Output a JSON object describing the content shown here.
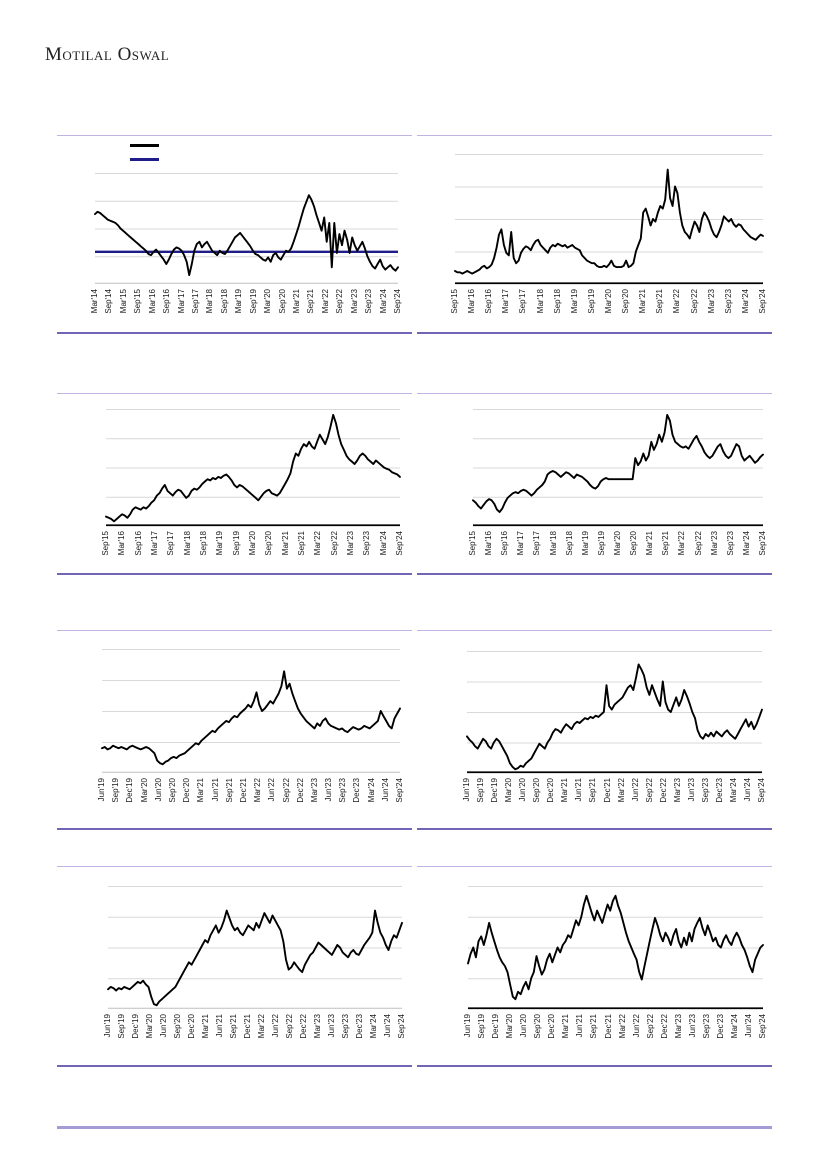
{
  "header": {
    "brand": "Motilal Oswal"
  },
  "colors": {
    "series_line": "#000000",
    "average_line": "#1f1d8a",
    "gridline": "#d9d9d9",
    "axis_baseline_black": "#000000",
    "axis_baseline_gray": "#bfbfbf",
    "panel_top_rule": "#c1b3e2",
    "panel_bottom_rule": "#7166b6",
    "footer_rule": "#a79bd6",
    "label_text": "#1a1a1a"
  },
  "legend": {
    "swatches": [
      {
        "name": "series-line-swatch",
        "color": "#000000"
      },
      {
        "name": "average-line-swatch",
        "color": "#1f1d8a"
      }
    ]
  },
  "chart_data": [
    {
      "id": "chart-1",
      "type": "line",
      "position": "row1-left",
      "title": "",
      "xlabel": "",
      "ylabel": "",
      "x_labels": [
        "Mar'14",
        "Sep'14",
        "Mar'15",
        "Sep'15",
        "Mar'16",
        "Sep'16",
        "Mar'17",
        "Sep'17",
        "Mar'18",
        "Sep'18",
        "Mar'19",
        "Sep'19",
        "Mar'20",
        "Sep'20",
        "Mar'21",
        "Sep'21",
        "Mar'22",
        "Sep'22",
        "Mar'23",
        "Sep'23",
        "Mar'24",
        "Sep'24"
      ],
      "y_axis": {
        "tick_labels_visible": false,
        "units": "relative percent of plot height"
      },
      "ylim": [
        0,
        100
      ],
      "grid": true,
      "baseline": "gray",
      "has_average_line": true,
      "average_value": 29,
      "values": [
        63,
        65,
        64,
        62,
        60,
        58,
        57,
        56,
        55,
        53,
        50,
        48,
        46,
        44,
        42,
        40,
        38,
        36,
        34,
        32,
        30,
        27,
        26,
        29,
        31,
        28,
        25,
        22,
        18,
        22,
        27,
        31,
        33,
        32,
        30,
        26,
        20,
        8,
        18,
        30,
        36,
        38,
        33,
        36,
        38,
        34,
        30,
        28,
        26,
        30,
        28,
        27,
        30,
        34,
        38,
        42,
        44,
        46,
        43,
        40,
        37,
        34,
        30,
        27,
        26,
        24,
        22,
        21,
        24,
        20,
        26,
        28,
        24,
        22,
        26,
        30,
        29,
        32,
        38,
        45,
        52,
        60,
        68,
        74,
        80,
        76,
        70,
        62,
        55,
        48,
        60,
        38,
        55,
        15,
        55,
        28,
        45,
        35,
        48,
        40,
        28,
        42,
        35,
        30,
        34,
        38,
        32,
        25,
        20,
        16,
        14,
        18,
        22,
        16,
        13,
        15,
        17,
        14,
        12,
        15
      ]
    },
    {
      "id": "chart-2",
      "type": "line",
      "position": "row1-right",
      "title": "",
      "xlabel": "",
      "ylabel": "",
      "x_labels": [
        "Sep'15",
        "Mar'16",
        "Sep'16",
        "Mar'17",
        "Sep'17",
        "Mar'18",
        "Sep'18",
        "Mar'19",
        "Sep'19",
        "Mar'20",
        "Sep'20",
        "Mar'21",
        "Sep'21",
        "Mar'22",
        "Sep'22",
        "Mar'23",
        "Sep'23",
        "Mar'24",
        "Sep'24"
      ],
      "y_axis": {
        "tick_labels_visible": false,
        "units": "relative percent of plot height"
      },
      "ylim": [
        0,
        100
      ],
      "grid": true,
      "baseline": "black",
      "has_average_line": false,
      "average_value": null,
      "values": [
        10,
        9,
        9,
        8,
        9,
        10,
        9,
        8,
        9,
        10,
        11,
        13,
        14,
        12,
        13,
        15,
        20,
        28,
        38,
        42,
        30,
        24,
        22,
        40,
        20,
        16,
        18,
        24,
        27,
        29,
        28,
        26,
        30,
        33,
        34,
        30,
        28,
        26,
        24,
        28,
        30,
        29,
        31,
        30,
        29,
        30,
        28,
        29,
        30,
        28,
        27,
        26,
        22,
        20,
        18,
        17,
        16,
        16,
        14,
        13,
        13,
        14,
        13,
        15,
        18,
        14,
        13,
        13,
        13,
        14,
        18,
        13,
        14,
        16,
        25,
        30,
        35,
        55,
        58,
        52,
        45,
        50,
        48,
        55,
        60,
        58,
        65,
        88,
        66,
        60,
        75,
        70,
        55,
        45,
        40,
        38,
        35,
        42,
        48,
        45,
        40,
        50,
        55,
        52,
        48,
        42,
        38,
        36,
        40,
        45,
        52,
        50,
        48,
        50,
        46,
        44,
        46,
        45,
        42,
        40,
        38,
        36,
        35,
        34,
        36,
        38,
        37
      ]
    },
    {
      "id": "chart-3",
      "type": "line",
      "position": "row2-left",
      "title": "",
      "xlabel": "",
      "ylabel": "",
      "x_labels": [
        "Sep'15",
        "Mar'16",
        "Sep'16",
        "Mar'17",
        "Sep'17",
        "Mar'18",
        "Sep'18",
        "Mar'19",
        "Sep'19",
        "Mar'20",
        "Sep'20",
        "Mar'21",
        "Sep'21",
        "Mar'22",
        "Sep'22",
        "Mar'23",
        "Sep'23",
        "Mar'24",
        "Sep'24"
      ],
      "y_axis": {
        "tick_labels_visible": false,
        "units": "relative percent of plot height"
      },
      "ylim": [
        0,
        100
      ],
      "grid": true,
      "baseline": "black",
      "has_average_line": false,
      "average_value": null,
      "values": [
        8,
        7,
        6,
        4,
        6,
        8,
        10,
        9,
        7,
        10,
        14,
        16,
        15,
        14,
        16,
        15,
        17,
        20,
        22,
        26,
        28,
        32,
        35,
        30,
        28,
        26,
        29,
        31,
        30,
        27,
        24,
        26,
        30,
        32,
        31,
        33,
        36,
        38,
        40,
        39,
        41,
        40,
        42,
        41,
        43,
        44,
        42,
        39,
        35,
        33,
        35,
        34,
        32,
        30,
        28,
        26,
        24,
        22,
        25,
        28,
        30,
        31,
        28,
        27,
        26,
        28,
        32,
        36,
        40,
        45,
        55,
        62,
        60,
        66,
        70,
        68,
        72,
        68,
        66,
        72,
        78,
        74,
        70,
        76,
        85,
        95,
        88,
        78,
        70,
        65,
        60,
        57,
        55,
        53,
        56,
        60,
        62,
        60,
        57,
        55,
        53,
        56,
        54,
        52,
        50,
        49,
        48,
        46,
        45,
        44,
        42
      ]
    },
    {
      "id": "chart-4",
      "type": "line",
      "position": "row2-right",
      "title": "",
      "xlabel": "",
      "ylabel": "",
      "x_labels": [
        "Sep'15",
        "Mar'16",
        "Sep'16",
        "Mar'17",
        "Sep'17",
        "Mar'18",
        "Sep'18",
        "Mar'19",
        "Sep'19",
        "Mar'20",
        "Sep'20",
        "Mar'21",
        "Sep'21",
        "Mar'22",
        "Sep'22",
        "Mar'23",
        "Sep'23",
        "Mar'24",
        "Sep'24"
      ],
      "y_axis": {
        "tick_labels_visible": false,
        "units": "relative percent of plot height"
      },
      "ylim": [
        0,
        100
      ],
      "grid": true,
      "baseline": "black",
      "has_average_line": false,
      "average_value": null,
      "values": [
        22,
        20,
        17,
        15,
        18,
        21,
        23,
        22,
        19,
        14,
        12,
        15,
        20,
        24,
        26,
        28,
        29,
        28,
        30,
        31,
        30,
        28,
        26,
        28,
        31,
        33,
        35,
        38,
        44,
        46,
        47,
        46,
        44,
        42,
        44,
        46,
        45,
        43,
        41,
        44,
        43,
        42,
        40,
        38,
        35,
        33,
        32,
        34,
        38,
        40,
        41,
        40,
        40,
        40,
        40,
        40,
        40,
        40,
        40,
        40,
        40,
        58,
        52,
        55,
        62,
        56,
        60,
        72,
        65,
        70,
        78,
        72,
        80,
        95,
        90,
        78,
        72,
        70,
        68,
        67,
        68,
        66,
        70,
        74,
        77,
        72,
        68,
        63,
        60,
        58,
        60,
        64,
        68,
        70,
        64,
        60,
        58,
        60,
        65,
        70,
        68,
        60,
        56,
        58,
        60,
        57,
        54,
        56,
        59,
        61
      ]
    },
    {
      "id": "chart-5",
      "type": "line",
      "position": "row3-left",
      "title": "",
      "xlabel": "",
      "ylabel": "",
      "x_labels": [
        "Jun'19",
        "Sep'19",
        "Dec'19",
        "Mar'20",
        "Jun'20",
        "Sep'20",
        "Dec'20",
        "Mar'21",
        "Jun'21",
        "Sep'21",
        "Dec'21",
        "Mar'22",
        "Jun'22",
        "Sep'22",
        "Dec'22",
        "Mar'23",
        "Jun'23",
        "Sep'23",
        "Dec'23",
        "Mar'24",
        "Jun'24",
        "Sep'24"
      ],
      "y_axis": {
        "tick_labels_visible": false,
        "units": "relative percent of plot height"
      },
      "ylim": [
        0,
        100
      ],
      "grid": true,
      "baseline": "gray",
      "has_average_line": false,
      "average_value": null,
      "values": [
        20,
        21,
        19,
        20,
        22,
        21,
        20,
        21,
        20,
        19,
        21,
        22,
        21,
        20,
        19,
        20,
        21,
        20,
        18,
        16,
        10,
        8,
        7,
        9,
        10,
        12,
        13,
        12,
        14,
        15,
        16,
        18,
        20,
        22,
        24,
        23,
        26,
        28,
        30,
        32,
        34,
        33,
        36,
        38,
        40,
        42,
        41,
        44,
        46,
        45,
        48,
        50,
        52,
        55,
        53,
        58,
        65,
        55,
        50,
        52,
        55,
        58,
        56,
        60,
        64,
        70,
        82,
        68,
        72,
        64,
        58,
        52,
        48,
        45,
        42,
        40,
        38,
        36,
        40,
        38,
        42,
        44,
        40,
        38,
        37,
        36,
        35,
        36,
        34,
        33,
        35,
        37,
        36,
        35,
        36,
        38,
        37,
        36,
        38,
        40,
        42,
        50,
        46,
        42,
        38,
        36,
        44,
        48,
        52
      ]
    },
    {
      "id": "chart-6",
      "type": "line",
      "position": "row3-right",
      "title": "",
      "xlabel": "",
      "ylabel": "",
      "x_labels": [
        "Jun'19",
        "Sep'19",
        "Dec'19",
        "Mar'20",
        "Jun'20",
        "Sep'20",
        "Dec'20",
        "Mar'21",
        "Jun'21",
        "Sep'21",
        "Dec'21",
        "Mar'22",
        "Jun'22",
        "Sep'22",
        "Dec'22",
        "Mar'23",
        "Jun'23",
        "Sep'23",
        "Dec'23",
        "Mar'24",
        "Jun'24",
        "Sep'24"
      ],
      "y_axis": {
        "tick_labels_visible": false,
        "units": "relative percent of plot height"
      },
      "ylim": [
        0,
        100
      ],
      "grid": true,
      "baseline": "black",
      "has_average_line": false,
      "average_value": null,
      "values": [
        30,
        27,
        25,
        22,
        20,
        24,
        28,
        26,
        22,
        20,
        25,
        28,
        26,
        22,
        18,
        14,
        8,
        5,
        3,
        4,
        6,
        5,
        8,
        10,
        12,
        16,
        20,
        24,
        22,
        20,
        25,
        28,
        33,
        36,
        35,
        33,
        37,
        40,
        38,
        36,
        40,
        42,
        41,
        43,
        45,
        44,
        46,
        45,
        47,
        46,
        48,
        50,
        72,
        55,
        52,
        56,
        58,
        60,
        62,
        66,
        70,
        72,
        68,
        78,
        89,
        85,
        80,
        70,
        64,
        72,
        66,
        60,
        55,
        75,
        58,
        52,
        50,
        56,
        62,
        55,
        60,
        68,
        63,
        57,
        50,
        45,
        35,
        30,
        28,
        32,
        30,
        33,
        30,
        34,
        32,
        30,
        33,
        35,
        32,
        30,
        28,
        32,
        36,
        40,
        44,
        38,
        42,
        36,
        40,
        46,
        52
      ]
    },
    {
      "id": "chart-7",
      "type": "line",
      "position": "row4-left",
      "title": "",
      "xlabel": "",
      "ylabel": "",
      "x_labels": [
        "Jun'19",
        "Sep'19",
        "Dec'19",
        "Mar'20",
        "Jun'20",
        "Sep'20",
        "Dec'20",
        "Mar'21",
        "Jun'21",
        "Sep'21",
        "Dec'21",
        "Mar'22",
        "Jun'22",
        "Sep'22",
        "Dec'22",
        "Mar'23",
        "Jun'23",
        "Sep'23",
        "Dec'23",
        "Mar'24",
        "Jun'24",
        "Sep'24"
      ],
      "y_axis": {
        "tick_labels_visible": false,
        "units": "relative percent of plot height"
      },
      "ylim": [
        0,
        100
      ],
      "grid": true,
      "baseline": "gray",
      "has_average_line": false,
      "average_value": null,
      "values": [
        16,
        18,
        17,
        15,
        17,
        16,
        18,
        17,
        16,
        18,
        20,
        22,
        21,
        23,
        20,
        18,
        10,
        4,
        3,
        6,
        8,
        10,
        12,
        14,
        16,
        18,
        22,
        26,
        30,
        34,
        38,
        36,
        40,
        44,
        48,
        52,
        56,
        54,
        60,
        64,
        68,
        62,
        66,
        72,
        80,
        74,
        68,
        64,
        66,
        62,
        60,
        64,
        68,
        66,
        64,
        70,
        66,
        72,
        78,
        74,
        70,
        76,
        72,
        68,
        64,
        55,
        40,
        32,
        34,
        38,
        35,
        32,
        30,
        36,
        40,
        44,
        46,
        50,
        54,
        52,
        50,
        48,
        46,
        44,
        48,
        52,
        50,
        46,
        44,
        42,
        46,
        48,
        45,
        44,
        48,
        52,
        55,
        58,
        62,
        80,
        70,
        62,
        58,
        52,
        48,
        55,
        60,
        58,
        64,
        70
      ]
    },
    {
      "id": "chart-8",
      "type": "line",
      "position": "row4-right",
      "title": "",
      "xlabel": "",
      "ylabel": "",
      "x_labels": [
        "Jun'19",
        "Sep'19",
        "Dec'19",
        "Mar'20",
        "Jun'20",
        "Sep'20",
        "Dec'20",
        "Mar'21",
        "Jun'21",
        "Sep'21",
        "Dec'21",
        "Mar'22",
        "Jun'22",
        "Sep'22",
        "Dec'22",
        "Mar'23",
        "Jun'23",
        "Sep'23",
        "Dec'23",
        "Mar'24",
        "Jun'24",
        "Sep'24"
      ],
      "y_axis": {
        "tick_labels_visible": false,
        "units": "relative percent of plot height"
      },
      "ylim": [
        0,
        100
      ],
      "grid": true,
      "baseline": "black",
      "has_average_line": false,
      "average_value": null,
      "values": [
        37,
        45,
        50,
        42,
        55,
        59,
        52,
        60,
        70,
        62,
        55,
        48,
        42,
        38,
        35,
        30,
        20,
        10,
        8,
        14,
        12,
        18,
        22,
        16,
        25,
        30,
        43,
        35,
        28,
        32,
        40,
        45,
        38,
        44,
        50,
        46,
        52,
        55,
        60,
        58,
        65,
        72,
        68,
        75,
        85,
        92,
        85,
        78,
        72,
        80,
        75,
        70,
        78,
        85,
        80,
        88,
        92,
        84,
        78,
        70,
        62,
        55,
        50,
        45,
        40,
        30,
        24,
        35,
        45,
        55,
        65,
        74,
        68,
        60,
        55,
        62,
        58,
        52,
        60,
        65,
        55,
        50,
        58,
        52,
        62,
        55,
        65,
        70,
        74,
        66,
        60,
        68,
        62,
        55,
        58,
        52,
        50,
        56,
        60,
        55,
        52,
        58,
        62,
        58,
        52,
        48,
        42,
        35,
        30,
        40,
        45,
        50,
        52
      ]
    }
  ]
}
